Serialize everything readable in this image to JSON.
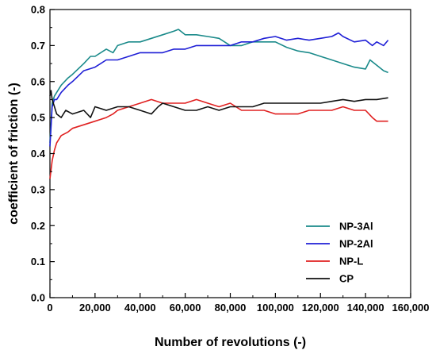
{
  "chart_data": {
    "type": "line",
    "title": "",
    "xlabel": "Number of revolutions (-)",
    "ylabel": "coefficient of friction (-)",
    "xlim": [
      0,
      160000
    ],
    "ylim": [
      0.0,
      0.8
    ],
    "x_ticks": [
      0,
      20000,
      40000,
      60000,
      80000,
      100000,
      120000,
      140000,
      160000
    ],
    "x_tick_labels": [
      "0",
      "20,000",
      "40,000",
      "60,000",
      "80,000",
      "100,000",
      "120,000",
      "140,000",
      "160,000"
    ],
    "y_ticks": [
      0.0,
      0.1,
      0.2,
      0.3,
      0.4,
      0.5,
      0.6,
      0.7,
      0.8
    ],
    "y_tick_labels": [
      "0.0",
      "0.1",
      "0.2",
      "0.3",
      "0.4",
      "0.5",
      "0.6",
      "0.7",
      "0.8"
    ],
    "grid": false,
    "legend_position": "bottom-right",
    "series": [
      {
        "name": "NP-3Al",
        "color": "#1a8a8a",
        "x": [
          0,
          1000,
          2000,
          3000,
          5000,
          8000,
          10000,
          15000,
          18000,
          20000,
          25000,
          28000,
          30000,
          35000,
          40000,
          45000,
          50000,
          55000,
          57000,
          60000,
          65000,
          70000,
          75000,
          80000,
          85000,
          90000,
          95000,
          100000,
          105000,
          110000,
          115000,
          120000,
          125000,
          130000,
          135000,
          140000,
          142000,
          145000,
          148000,
          150000
        ],
        "y": [
          0.43,
          0.54,
          0.56,
          0.57,
          0.59,
          0.61,
          0.62,
          0.65,
          0.67,
          0.67,
          0.69,
          0.68,
          0.7,
          0.71,
          0.71,
          0.72,
          0.73,
          0.74,
          0.745,
          0.73,
          0.73,
          0.725,
          0.72,
          0.7,
          0.7,
          0.71,
          0.71,
          0.71,
          0.695,
          0.685,
          0.68,
          0.67,
          0.66,
          0.65,
          0.64,
          0.635,
          0.66,
          0.645,
          0.63,
          0.625
        ]
      },
      {
        "name": "NP-2Al",
        "color": "#1f1fd6",
        "x": [
          0,
          1000,
          2000,
          3000,
          5000,
          8000,
          10000,
          15000,
          20000,
          25000,
          30000,
          35000,
          40000,
          45000,
          50000,
          55000,
          60000,
          65000,
          70000,
          75000,
          80000,
          85000,
          90000,
          95000,
          100000,
          105000,
          110000,
          115000,
          120000,
          125000,
          128000,
          130000,
          135000,
          140000,
          143000,
          145000,
          148000,
          150000
        ],
        "y": [
          0.42,
          0.53,
          0.55,
          0.55,
          0.57,
          0.59,
          0.6,
          0.63,
          0.64,
          0.66,
          0.66,
          0.67,
          0.68,
          0.68,
          0.68,
          0.69,
          0.69,
          0.7,
          0.7,
          0.7,
          0.7,
          0.71,
          0.71,
          0.72,
          0.725,
          0.715,
          0.72,
          0.715,
          0.72,
          0.725,
          0.735,
          0.725,
          0.71,
          0.715,
          0.7,
          0.71,
          0.7,
          0.715
        ]
      },
      {
        "name": "NP-L",
        "color": "#e02020",
        "x": [
          0,
          1000,
          2000,
          3000,
          5000,
          8000,
          10000,
          15000,
          20000,
          25000,
          28000,
          30000,
          35000,
          40000,
          45000,
          50000,
          55000,
          60000,
          65000,
          70000,
          75000,
          80000,
          85000,
          90000,
          95000,
          100000,
          105000,
          110000,
          115000,
          120000,
          125000,
          130000,
          135000,
          140000,
          143000,
          145000,
          148000,
          150000
        ],
        "y": [
          0.33,
          0.38,
          0.41,
          0.43,
          0.45,
          0.46,
          0.47,
          0.48,
          0.49,
          0.5,
          0.51,
          0.52,
          0.53,
          0.54,
          0.55,
          0.54,
          0.54,
          0.54,
          0.55,
          0.54,
          0.53,
          0.54,
          0.52,
          0.52,
          0.52,
          0.51,
          0.51,
          0.51,
          0.52,
          0.52,
          0.52,
          0.53,
          0.52,
          0.52,
          0.5,
          0.49,
          0.49,
          0.49
        ]
      },
      {
        "name": "CP",
        "color": "#111111",
        "x": [
          0,
          500,
          1000,
          2000,
          3000,
          5000,
          7000,
          10000,
          15000,
          18000,
          20000,
          25000,
          30000,
          35000,
          40000,
          45000,
          48000,
          50000,
          55000,
          60000,
          65000,
          70000,
          75000,
          80000,
          85000,
          90000,
          95000,
          100000,
          105000,
          110000,
          115000,
          120000,
          125000,
          130000,
          135000,
          140000,
          145000,
          150000
        ],
        "y": [
          0.56,
          0.575,
          0.55,
          0.53,
          0.51,
          0.5,
          0.52,
          0.51,
          0.52,
          0.5,
          0.53,
          0.52,
          0.53,
          0.53,
          0.52,
          0.51,
          0.53,
          0.54,
          0.53,
          0.52,
          0.52,
          0.53,
          0.52,
          0.53,
          0.53,
          0.53,
          0.54,
          0.54,
          0.54,
          0.54,
          0.54,
          0.54,
          0.545,
          0.55,
          0.545,
          0.55,
          0.55,
          0.555
        ]
      }
    ]
  }
}
